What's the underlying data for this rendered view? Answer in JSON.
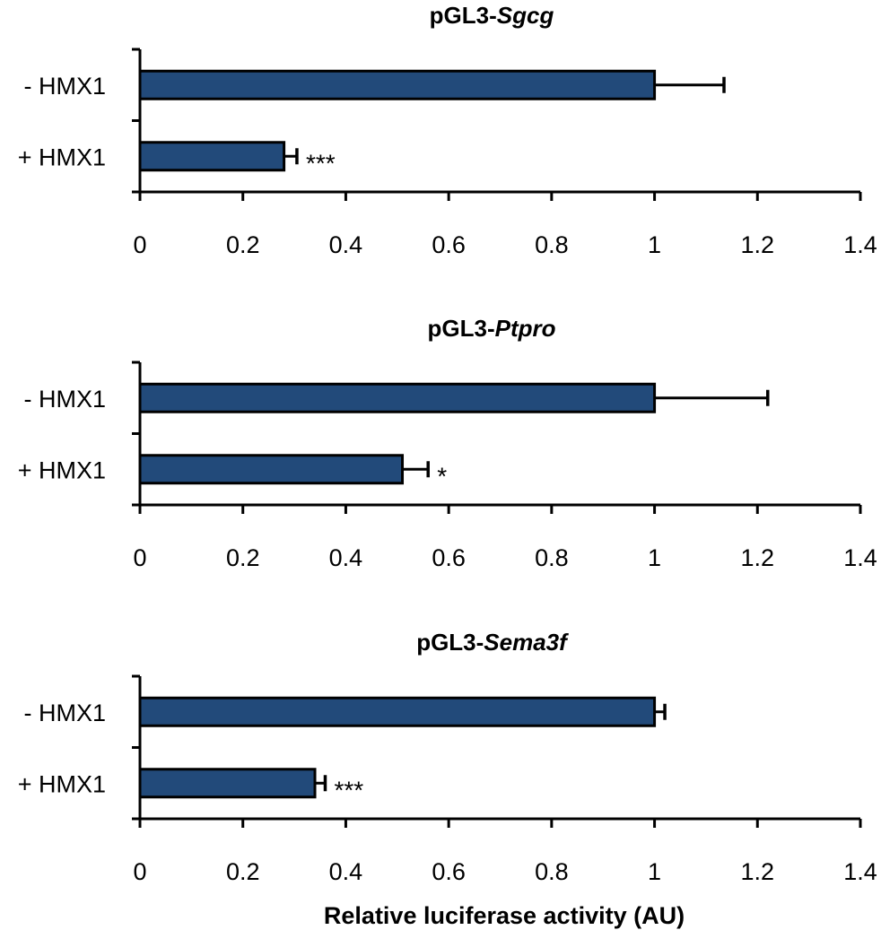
{
  "chart_data": [
    {
      "type": "bar",
      "orientation": "horizontal",
      "title_prefix": "pGL3-",
      "title_gene": "Sgcg",
      "categories": [
        "- HMX1",
        "+ HMX1"
      ],
      "values": [
        1.0,
        0.28
      ],
      "errors": [
        0.135,
        0.025
      ],
      "significance": [
        "",
        "***"
      ],
      "xlim": [
        0,
        1.4
      ],
      "xticks": [
        "0",
        "0.2",
        "0.4",
        "0.6",
        "0.8",
        "1",
        "1.2",
        "1.4"
      ],
      "bar_color": "#224a7a"
    },
    {
      "type": "bar",
      "orientation": "horizontal",
      "title_prefix": "pGL3-",
      "title_gene": "Ptpro",
      "categories": [
        "- HMX1",
        "+ HMX1"
      ],
      "values": [
        1.0,
        0.51
      ],
      "errors": [
        0.22,
        0.05
      ],
      "significance": [
        "",
        "*"
      ],
      "xlim": [
        0,
        1.4
      ],
      "xticks": [
        "0",
        "0.2",
        "0.4",
        "0.6",
        "0.8",
        "1",
        "1.2",
        "1.4"
      ],
      "bar_color": "#224a7a"
    },
    {
      "type": "bar",
      "orientation": "horizontal",
      "title_prefix": "pGL3-",
      "title_gene": "Sema3f",
      "categories": [
        "- HMX1",
        "+ HMX1"
      ],
      "values": [
        1.0,
        0.34
      ],
      "errors": [
        0.02,
        0.02
      ],
      "significance": [
        "",
        "***"
      ],
      "xlim": [
        0,
        1.4
      ],
      "xticks": [
        "0",
        "0.2",
        "0.4",
        "0.6",
        "0.8",
        "1",
        "1.2",
        "1.4"
      ],
      "bar_color": "#224a7a"
    }
  ],
  "xlabel": "Relative luciferase activity (AU)"
}
